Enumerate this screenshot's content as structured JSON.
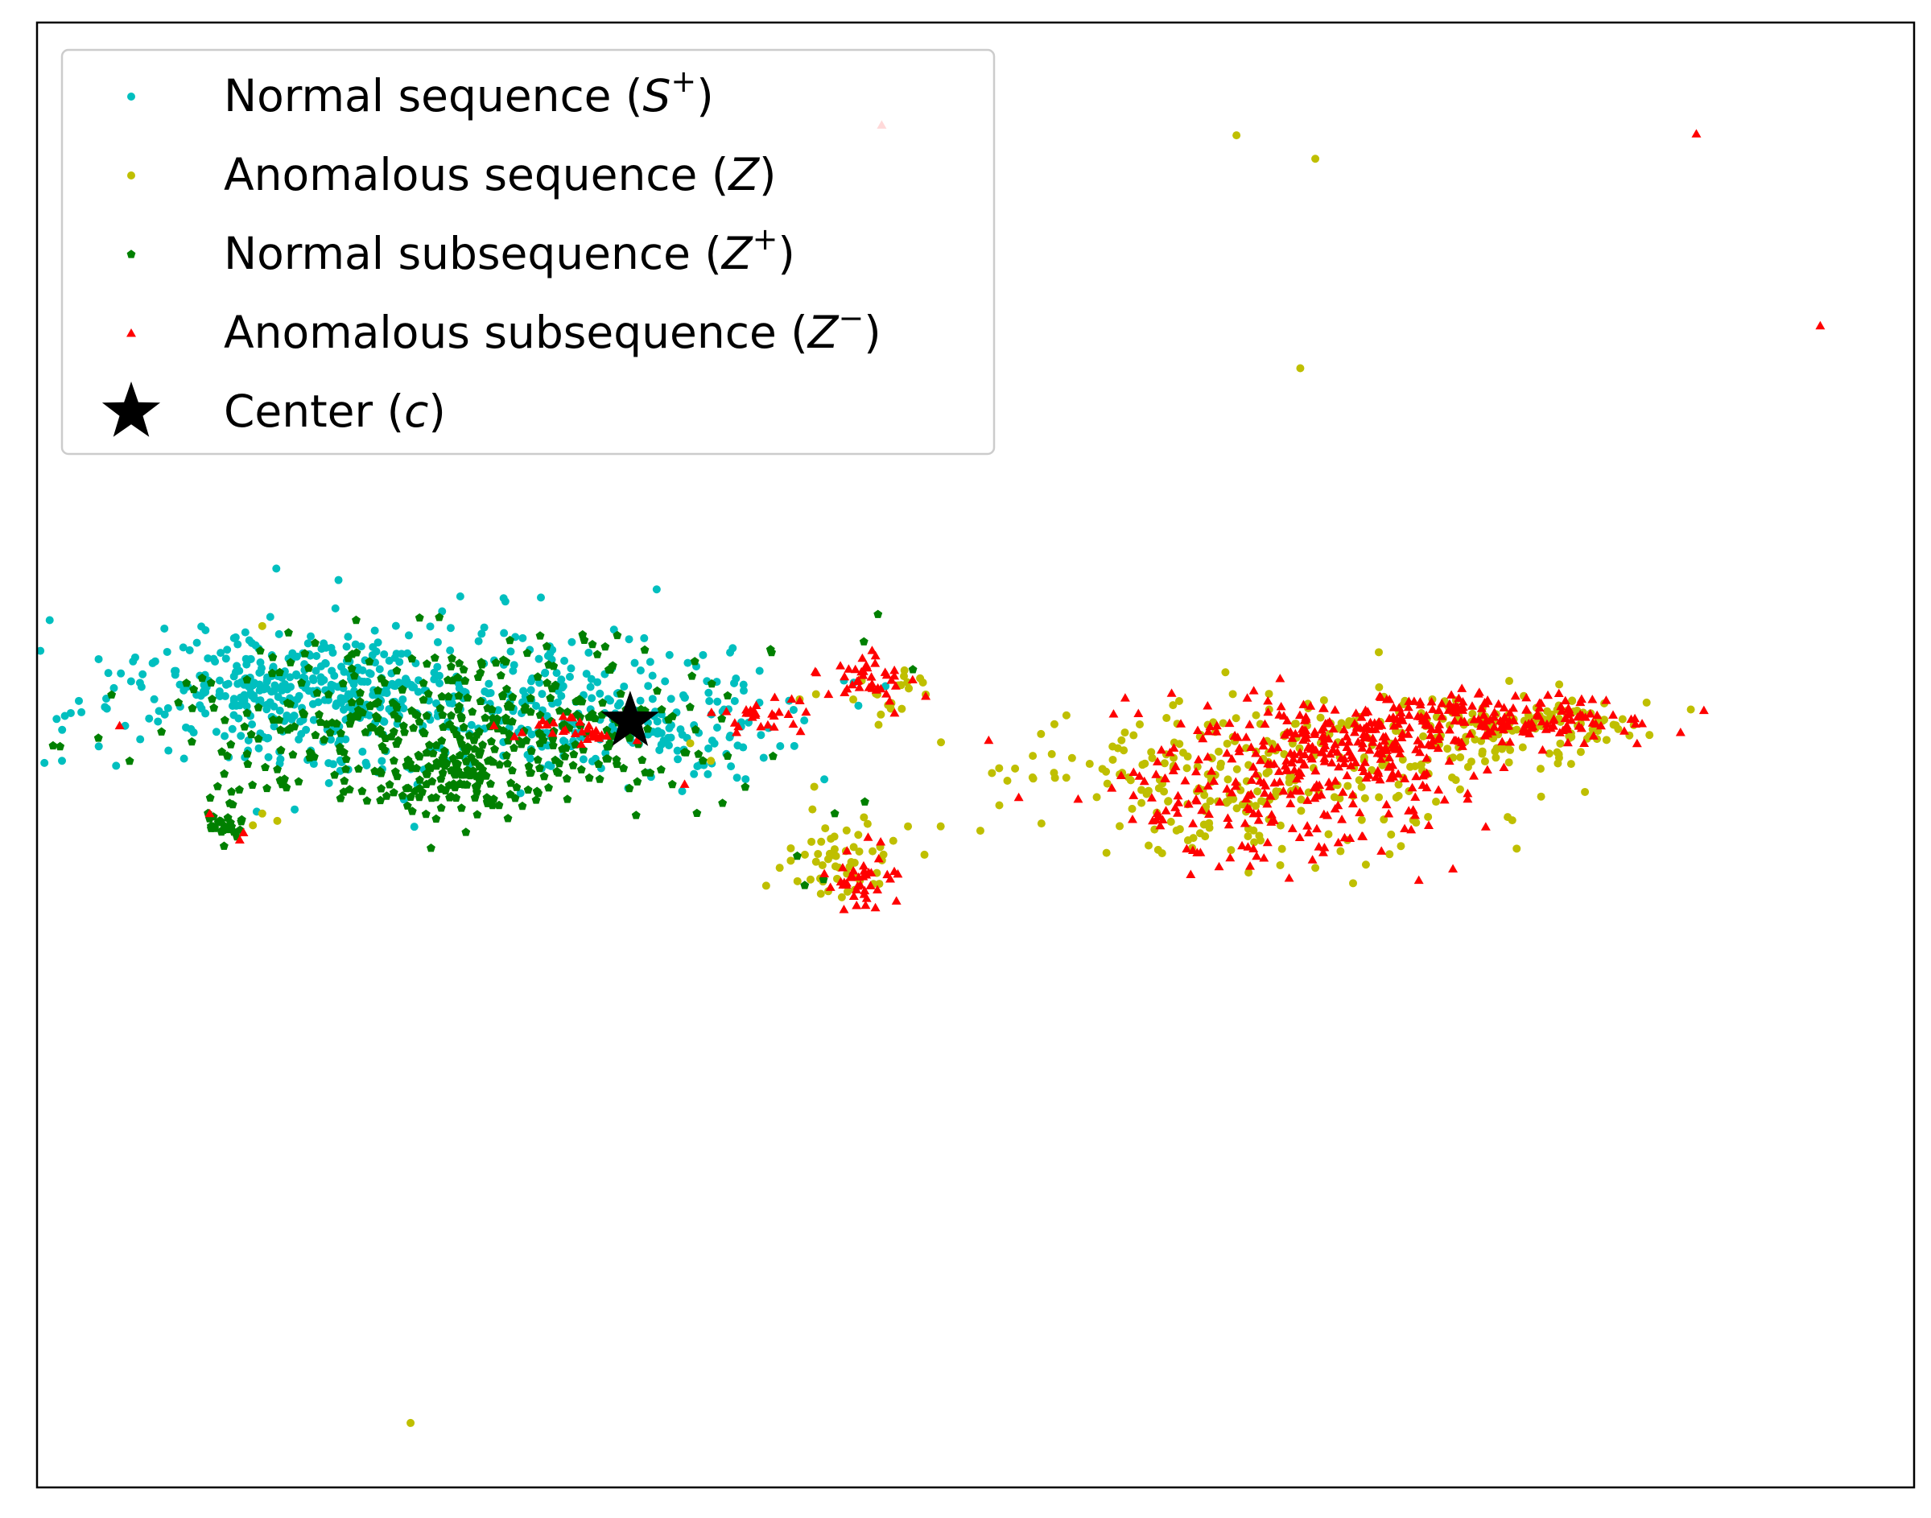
{
  "chart_data": {
    "type": "scatter",
    "title": "",
    "xlabel": "",
    "ylabel": "",
    "xlim": [
      0,
      100
    ],
    "ylim": [
      0,
      100
    ],
    "ticks": false,
    "grid": false,
    "legend": {
      "placement": "top-left"
    },
    "center": {
      "label": "Center (",
      "label_var": "c",
      "label_end": ")",
      "color": "#000000",
      "marker": "star",
      "x": 31.6,
      "y": 52.3
    },
    "series": [
      {
        "name": "Normal sequence (",
        "name_var": "S",
        "name_sup": "+",
        "name_end": ")",
        "color": "#00bfbf",
        "marker": "circle",
        "clusters": [
          {
            "cx": 13.5,
            "cy": 54.5,
            "sx": 4.0,
            "sy": 1.6,
            "n": 260,
            "seed": 11
          },
          {
            "cx": 21.5,
            "cy": 53.5,
            "sx": 8.5,
            "sy": 3.0,
            "n": 340,
            "seed": 12
          },
          {
            "cx": 32.5,
            "cy": 52.5,
            "sx": 3.8,
            "sy": 1.9,
            "n": 120,
            "seed": 13
          }
        ],
        "points": [
          [
            6.5,
            53.0
          ],
          [
            7.0,
            50.3
          ],
          [
            20.1,
            45.1
          ],
          [
            35.0,
            48.7
          ]
        ]
      },
      {
        "name": "Anomalous sequence (",
        "name_var": "Z",
        "name_end": ")",
        "color": "#bfbf00",
        "marker": "circle",
        "clusters": [
          {
            "cx": 62.5,
            "cy": 48.0,
            "sx": 6.0,
            "sy": 2.8,
            "n": 180,
            "seed": 21
          },
          {
            "cx": 71.5,
            "cy": 50.0,
            "sx": 5.5,
            "sy": 2.4,
            "n": 130,
            "seed": 22
          },
          {
            "cx": 79.0,
            "cy": 52.2,
            "sx": 3.6,
            "sy": 0.9,
            "n": 110,
            "seed": 23
          },
          {
            "cx": 43.0,
            "cy": 43.0,
            "sx": 1.8,
            "sy": 1.5,
            "n": 55,
            "seed": 24
          },
          {
            "cx": 44.5,
            "cy": 54.2,
            "sx": 1.3,
            "sy": 0.9,
            "n": 22,
            "seed": 25
          }
        ],
        "points": [
          [
            63.9,
            92.3
          ],
          [
            67.3,
            76.4
          ],
          [
            68.1,
            90.7
          ],
          [
            19.9,
            4.4
          ],
          [
            12.0,
            46.0
          ],
          [
            12.8,
            45.5
          ],
          [
            11.5,
            45.2
          ],
          [
            35.9,
            49.6
          ],
          [
            34.8,
            50.8
          ],
          [
            12.0,
            58.8
          ]
        ]
      },
      {
        "name": "Normal subsequence (",
        "name_var": "Z",
        "name_sup": "+",
        "name_end": ")",
        "color": "#008000",
        "marker": "pentagon",
        "clusters": [
          {
            "cx": 22.5,
            "cy": 51.5,
            "sx": 7.5,
            "sy": 3.0,
            "n": 420,
            "seed": 31
          },
          {
            "cx": 22.5,
            "cy": 48.5,
            "sx": 2.2,
            "sy": 1.2,
            "n": 80,
            "seed": 32
          },
          {
            "cx": 9.8,
            "cy": 45.6,
            "sx": 0.7,
            "sy": 0.8,
            "n": 26,
            "seed": 33
          }
        ],
        "points": [
          [
            44.8,
            59.6
          ],
          [
            42.5,
            46.0
          ],
          [
            40.9,
            41.1
          ],
          [
            41.9,
            41.5
          ],
          [
            40.5,
            43.1
          ],
          [
            44.1,
            46.8
          ],
          [
            17.0,
            59.2
          ]
        ]
      },
      {
        "name": "Anomalous subsequence (",
        "name_var": "Z",
        "name_sup": "−",
        "name_end": ")",
        "color": "#ff0000",
        "marker": "triangle",
        "clusters": [
          {
            "cx": 66.0,
            "cy": 48.0,
            "sx": 4.8,
            "sy": 2.8,
            "n": 240,
            "seed": 41
          },
          {
            "cx": 70.5,
            "cy": 51.0,
            "sx": 3.0,
            "sy": 1.4,
            "n": 140,
            "seed": 42
          },
          {
            "cx": 78.5,
            "cy": 52.5,
            "sx": 4.2,
            "sy": 0.8,
            "n": 160,
            "seed": 43
          },
          {
            "cx": 43.7,
            "cy": 41.5,
            "sx": 1.0,
            "sy": 1.1,
            "n": 40,
            "seed": 44
          },
          {
            "cx": 44.3,
            "cy": 55.2,
            "sx": 1.2,
            "sy": 0.8,
            "n": 40,
            "seed": 45
          },
          {
            "cx": 38.5,
            "cy": 52.5,
            "sx": 1.6,
            "sy": 0.6,
            "n": 28,
            "seed": 46
          },
          {
            "cx": 28.0,
            "cy": 51.5,
            "sx": 1.6,
            "sy": 0.6,
            "n": 30,
            "seed": 47
          }
        ],
        "points": [
          [
            4.4,
            52.0
          ],
          [
            88.4,
            92.4
          ],
          [
            95.0,
            79.3
          ],
          [
            45.0,
            93.0
          ],
          [
            9.2,
            46.0
          ],
          [
            10.8,
            44.2
          ],
          [
            11.0,
            44.7
          ],
          [
            50.7,
            51.0
          ],
          [
            52.3,
            47.1
          ],
          [
            34.5,
            48.0
          ]
        ]
      }
    ]
  }
}
